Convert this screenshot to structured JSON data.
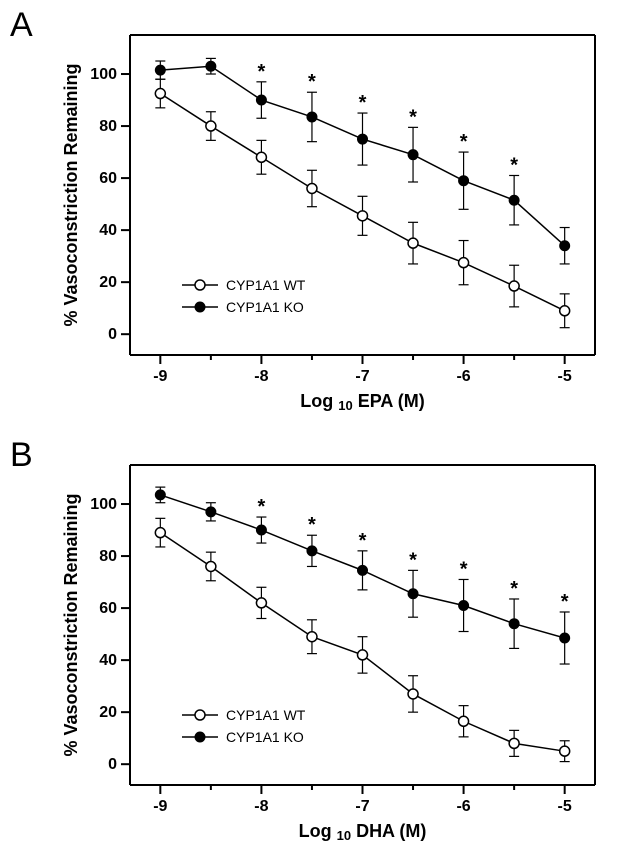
{
  "panel_labels": {
    "A": "A",
    "B": "B"
  },
  "chartA": {
    "type": "line-errorbar",
    "x_label": [
      "Log ",
      "10",
      " EPA (M)"
    ],
    "y_label": "% Vasoconstriction Remaining",
    "x_ticks": [
      -9,
      -8,
      -7,
      -6,
      -5
    ],
    "y_ticks": [
      0,
      20,
      40,
      60,
      80,
      100
    ],
    "xlim": [
      -9.3,
      -4.7
    ],
    "ylim": [
      -8,
      115
    ],
    "x_points": [
      -9,
      -8.5,
      -8,
      -7.5,
      -7,
      -6.5,
      -6,
      -5.5,
      -5
    ],
    "star_x": [
      -8,
      -7.5,
      -7,
      -6.5,
      -6,
      -5.5
    ],
    "series": [
      {
        "name": "CYP1A1 WT",
        "marker": "open",
        "y": [
          92.5,
          80,
          68,
          56,
          45.5,
          35,
          27.5,
          18.5,
          9
        ],
        "err": [
          5.5,
          5.5,
          6.5,
          7,
          7.5,
          8,
          8.5,
          8,
          6.5
        ]
      },
      {
        "name": "CYP1A1 KO",
        "marker": "filled",
        "y": [
          101.5,
          103,
          90,
          83.5,
          75,
          69,
          59,
          51.5,
          34
        ],
        "err": [
          3.5,
          3,
          7,
          9.5,
          10,
          10.5,
          11,
          9.5,
          7
        ]
      }
    ],
    "colors": {
      "line": "#000000",
      "open_fill": "#ffffff",
      "filled": "#000000",
      "bg": "#ffffff"
    },
    "marker_radius": 5.0
  },
  "chartB": {
    "type": "line-errorbar",
    "x_label": [
      "Log ",
      "10",
      " DHA (M)"
    ],
    "y_label": "% Vasoconstriction Remaining",
    "x_ticks": [
      -9,
      -8,
      -7,
      -6,
      -5
    ],
    "y_ticks": [
      0,
      20,
      40,
      60,
      80,
      100
    ],
    "xlim": [
      -9.3,
      -4.7
    ],
    "ylim": [
      -8,
      115
    ],
    "x_points": [
      -9,
      -8.5,
      -8,
      -7.5,
      -7,
      -6.5,
      -6,
      -5.5,
      -5
    ],
    "star_x": [
      -8,
      -7.5,
      -7,
      -6.5,
      -6,
      -5.5,
      -5
    ],
    "series": [
      {
        "name": "CYP1A1 WT",
        "marker": "open",
        "y": [
          89,
          76,
          62,
          49,
          42,
          27,
          16.5,
          8,
          5
        ],
        "err": [
          5.5,
          5.5,
          6,
          6.5,
          7,
          7,
          6,
          5,
          4
        ]
      },
      {
        "name": "CYP1A1 KO",
        "marker": "filled",
        "y": [
          103.5,
          97,
          90,
          82,
          74.5,
          65.5,
          61,
          54,
          48.5
        ],
        "err": [
          3,
          3.5,
          5,
          6,
          7.5,
          9,
          10,
          9.5,
          10
        ]
      }
    ],
    "colors": {
      "line": "#000000",
      "open_fill": "#ffffff",
      "filled": "#000000",
      "bg": "#ffffff"
    },
    "marker_radius": 5.0
  },
  "legend": {
    "items": [
      {
        "label": "CYP1A1 WT",
        "marker": "open"
      },
      {
        "label": "CYP1A1 KO",
        "marker": "filled"
      }
    ]
  }
}
